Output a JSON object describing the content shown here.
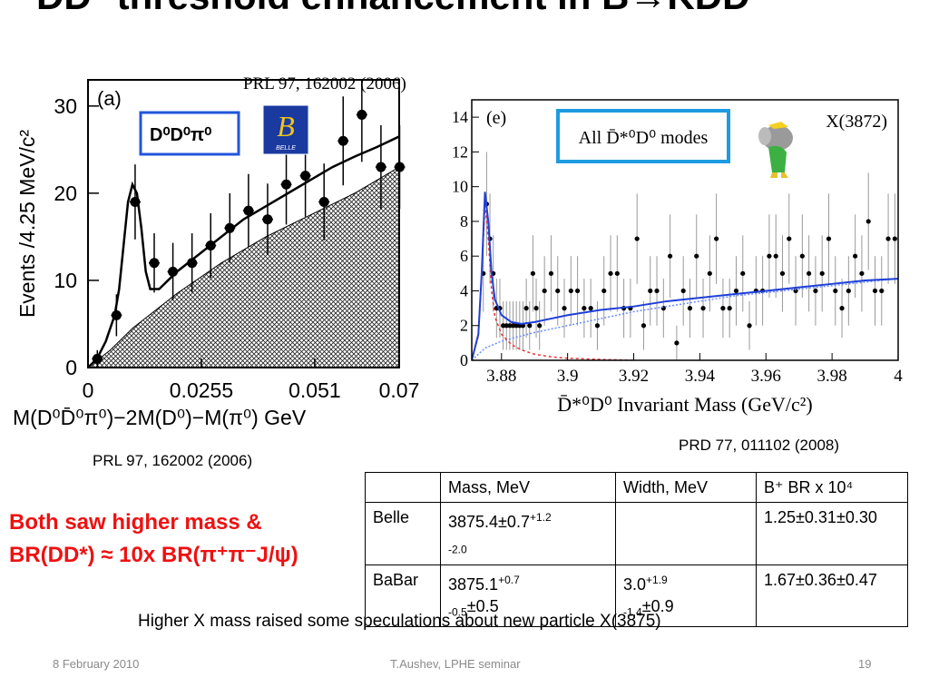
{
  "slide": {
    "title": "DD* threshold enhancement in B→KDD*",
    "cite_belle_top": "PRL 97, 162002 (2006)",
    "cite_belle": "PRL 97, 162002 (2006)",
    "cite_babar": "PRD 77, 011102 (2008)",
    "highlight_line1": "Both saw higher mass &",
    "highlight_line2": "BR(DD*) ≈ 10x BR(π⁺π⁻J/ψ)",
    "bottom_note": "Higher X mass raised some speculations about new particle X(3875)",
    "footer_date": "8 February 2010",
    "footer_center": "T.Aushev, LPHE seminar",
    "footer_page": "19"
  },
  "table": {
    "headers": [
      "",
      "Mass, MeV",
      "Width, MeV",
      "B⁺ BR x 10⁴"
    ],
    "rows": [
      {
        "exp": "Belle",
        "mass": "3875.4±0.7",
        "mass_up": "+1.2",
        "mass_dn": "-2.0",
        "width": "",
        "width_up": "",
        "width_dn": "",
        "br": "1.25±0.31±0.30"
      },
      {
        "exp": "BaBar",
        "mass": "3875.1",
        "mass_up": "+0.7",
        "mass_dn": "-0.5",
        "mass_tail": "±0.5",
        "width": "3.0",
        "width_up": "+1.9",
        "width_dn": "-1.4",
        "width_tail": "±0.9",
        "br": "1.67±0.36±0.47"
      }
    ]
  },
  "chart_data": [
    {
      "type": "scatter",
      "panel_label": "(a)",
      "legend_box": "D⁰D⁰π⁰",
      "logo_text": "BELLE",
      "ylabel": "Events /4.25 MeV/c²",
      "xlabel": "M(D⁰D̄⁰π⁰)−2M(D⁰)−M(π⁰) GeV",
      "xlim": [
        0,
        0.07
      ],
      "ylim": [
        0,
        33
      ],
      "x_ticks": [
        0,
        0.0255,
        0.051,
        0.07
      ],
      "x_tick_labels": [
        "0",
        "0.0255",
        "0.051",
        "0.07"
      ],
      "y_ticks": [
        0,
        10,
        20,
        30
      ],
      "y_tick_labels": [
        "0",
        "10",
        "20",
        "30"
      ],
      "points": {
        "x": [
          0.0021,
          0.0064,
          0.0106,
          0.0149,
          0.0191,
          0.0234,
          0.0276,
          0.0319,
          0.0361,
          0.0404,
          0.0446,
          0.0489,
          0.0531,
          0.0574,
          0.0616,
          0.0659,
          0.0701
        ],
        "y": [
          1,
          6,
          19,
          12,
          11,
          12,
          14,
          16,
          18,
          17,
          21,
          22,
          19,
          26,
          29,
          23,
          23
        ],
        "err": [
          1,
          2.4,
          4.3,
          3.4,
          3.3,
          3.4,
          3.7,
          4,
          4.2,
          4.1,
          4.6,
          4.7,
          4.4,
          5.1,
          5.4,
          4.8,
          4.8
        ]
      },
      "fit_curve": {
        "x": [
          0,
          0.002,
          0.004,
          0.006,
          0.007,
          0.008,
          0.009,
          0.01,
          0.011,
          0.012,
          0.013,
          0.014,
          0.016,
          0.018,
          0.02,
          0.025,
          0.03,
          0.035,
          0.04,
          0.045,
          0.05,
          0.055,
          0.06,
          0.065,
          0.07
        ],
        "y": [
          0,
          1,
          3,
          6,
          9,
          14,
          19,
          21,
          20,
          16,
          11,
          9,
          9,
          10,
          11,
          13,
          15,
          17,
          18.5,
          20,
          21.5,
          23,
          24.2,
          25.3,
          26.5
        ]
      },
      "background": {
        "x": [
          0,
          0.005,
          0.01,
          0.02,
          0.03,
          0.04,
          0.05,
          0.06,
          0.07
        ],
        "y": [
          0,
          2,
          4.5,
          8.5,
          12,
          15,
          17.5,
          20,
          23
        ]
      }
    },
    {
      "type": "scatter",
      "panel_label": "(e)",
      "panel_tag": "X(3872)",
      "legend_box": "All D̄*⁰D⁰ modes",
      "xlabel": "D̄*⁰D⁰ Invariant Mass (GeV/c²)",
      "xlim": [
        3.871,
        4.0
      ],
      "ylim": [
        0,
        15
      ],
      "x_ticks": [
        3.88,
        3.9,
        3.92,
        3.94,
        3.96,
        3.98,
        4.0
      ],
      "x_tick_labels": [
        "3.88",
        "3.9",
        "3.92",
        "3.94",
        "3.96",
        "3.98",
        "4"
      ],
      "y_ticks": [
        0,
        2,
        4,
        6,
        8,
        10,
        12,
        14
      ],
      "y_tick_labels": [
        "0",
        "2",
        "4",
        "6",
        "8",
        "10",
        "12",
        "14"
      ],
      "points": {
        "x": [
          3.8745,
          3.8755,
          3.8765,
          3.8775,
          3.8785,
          3.8795,
          3.8805,
          3.8815,
          3.8825,
          3.8835,
          3.8845,
          3.8855,
          3.8865,
          3.8875,
          3.8885,
          3.8895,
          3.8905,
          3.8915,
          3.893,
          3.895,
          3.897,
          3.899,
          3.901,
          3.903,
          3.905,
          3.907,
          3.909,
          3.911,
          3.913,
          3.915,
          3.917,
          3.919,
          3.921,
          3.923,
          3.925,
          3.927,
          3.929,
          3.931,
          3.933,
          3.935,
          3.937,
          3.939,
          3.941,
          3.943,
          3.945,
          3.947,
          3.949,
          3.951,
          3.953,
          3.955,
          3.957,
          3.959,
          3.961,
          3.963,
          3.965,
          3.967,
          3.969,
          3.971,
          3.973,
          3.975,
          3.977,
          3.979,
          3.981,
          3.983,
          3.985,
          3.987,
          3.989,
          3.991,
          3.993,
          3.995,
          3.997,
          3.999
        ],
        "y": [
          5,
          9,
          7,
          5,
          3,
          3,
          2,
          2,
          2,
          2,
          2,
          2,
          2,
          3,
          2,
          5,
          3,
          2,
          4,
          5,
          4,
          3,
          4,
          4,
          3,
          3,
          2,
          4,
          5,
          5,
          3,
          3,
          7,
          2,
          4,
          4,
          3,
          6,
          1,
          4,
          3,
          6,
          3,
          5,
          7,
          3,
          3,
          4,
          5,
          2,
          4,
          4,
          6,
          6,
          5,
          7,
          4,
          6,
          5,
          4,
          5,
          7,
          4,
          3,
          4,
          6,
          5,
          8,
          4,
          4,
          7,
          7
        ],
        "err": [
          2.2,
          3,
          2.6,
          2.2,
          1.7,
          1.7,
          1.4,
          1.4,
          1.4,
          1.4,
          1.4,
          1.4,
          1.4,
          1.7,
          1.4,
          2.2,
          1.7,
          1.4,
          2,
          2.2,
          2,
          1.7,
          2,
          2,
          1.7,
          1.7,
          1.4,
          2,
          2.2,
          2.2,
          1.7,
          1.7,
          2.6,
          1.4,
          2,
          2,
          1.7,
          2.4,
          1,
          2,
          1.7,
          2.4,
          1.7,
          2.2,
          2.6,
          1.7,
          1.7,
          2,
          2.2,
          1.4,
          2,
          2,
          2.4,
          2.4,
          2.2,
          2.6,
          2,
          2.4,
          2.2,
          2,
          2.2,
          2.6,
          2,
          1.7,
          2,
          2.4,
          2.2,
          2.8,
          2,
          2,
          2.6,
          2.6
        ]
      },
      "fit_total": {
        "x": [
          3.871,
          3.873,
          3.874,
          3.875,
          3.876,
          3.877,
          3.878,
          3.88,
          3.883,
          3.886,
          3.89,
          3.895,
          3.9,
          3.91,
          3.92,
          3.93,
          3.94,
          3.95,
          3.96,
          3.97,
          3.98,
          3.99,
          4.0
        ],
        "y": [
          0,
          1.5,
          5,
          9.7,
          8,
          5,
          3.5,
          2.6,
          2.2,
          2.1,
          2.2,
          2.4,
          2.6,
          2.9,
          3.1,
          3.4,
          3.6,
          3.8,
          4,
          4.2,
          4.4,
          4.6,
          4.7
        ]
      },
      "fit_signal": {
        "x": [
          3.871,
          3.873,
          3.874,
          3.875,
          3.876,
          3.877,
          3.878,
          3.88,
          3.883,
          3.886,
          3.89,
          3.895,
          3.9,
          3.91,
          3.92
        ],
        "y": [
          0,
          1.4,
          4.8,
          9,
          7,
          4,
          2.5,
          1.5,
          0.9,
          0.6,
          0.35,
          0.2,
          0.12,
          0.05,
          0
        ]
      },
      "fit_background": {
        "x": [
          3.871,
          3.875,
          3.88,
          3.89,
          3.9,
          3.91,
          3.92,
          3.93,
          3.94,
          3.95,
          3.96,
          3.97,
          3.98,
          3.99,
          4.0
        ],
        "y": [
          0,
          0.7,
          1.1,
          1.6,
          2,
          2.4,
          2.8,
          3.1,
          3.4,
          3.7,
          3.9,
          4.1,
          4.3,
          4.5,
          4.7
        ]
      }
    }
  ]
}
